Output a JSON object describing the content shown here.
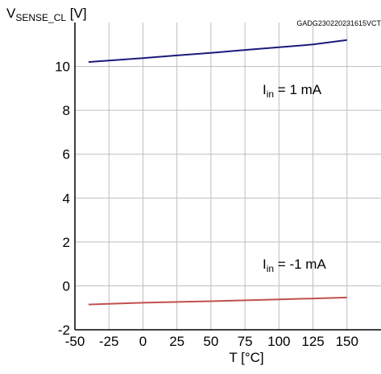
{
  "chart_data": {
    "type": "line",
    "figure_id": "GADG230220231615VCT",
    "ylabel_main": "V",
    "ylabel_sub": "SENSE_CL",
    "ylabel_unit": " [V]",
    "xlabel": "T [°C]",
    "xlim": [
      -50,
      175
    ],
    "ylim": [
      -2,
      12
    ],
    "x_ticks": [
      -50,
      -25,
      0,
      25,
      50,
      75,
      100,
      125,
      150
    ],
    "y_ticks": [
      -2,
      0,
      2,
      4,
      6,
      8,
      10
    ],
    "grid": true,
    "series": [
      {
        "label_main": "I",
        "label_sub": "in",
        "label_rest": " = 1 mA",
        "color": "#1a1a7a",
        "x": [
          -40,
          0,
          25,
          50,
          75,
          100,
          125,
          150
        ],
        "y": [
          10.2,
          10.38,
          10.5,
          10.62,
          10.75,
          10.87,
          11.0,
          11.2
        ]
      },
      {
        "label_main": "I",
        "label_sub": "in",
        "label_rest": " = -1 mA",
        "color": "#c0504d",
        "x": [
          -40,
          0,
          50,
          100,
          150
        ],
        "y": [
          -0.85,
          -0.77,
          -0.7,
          -0.62,
          -0.53
        ]
      }
    ]
  }
}
